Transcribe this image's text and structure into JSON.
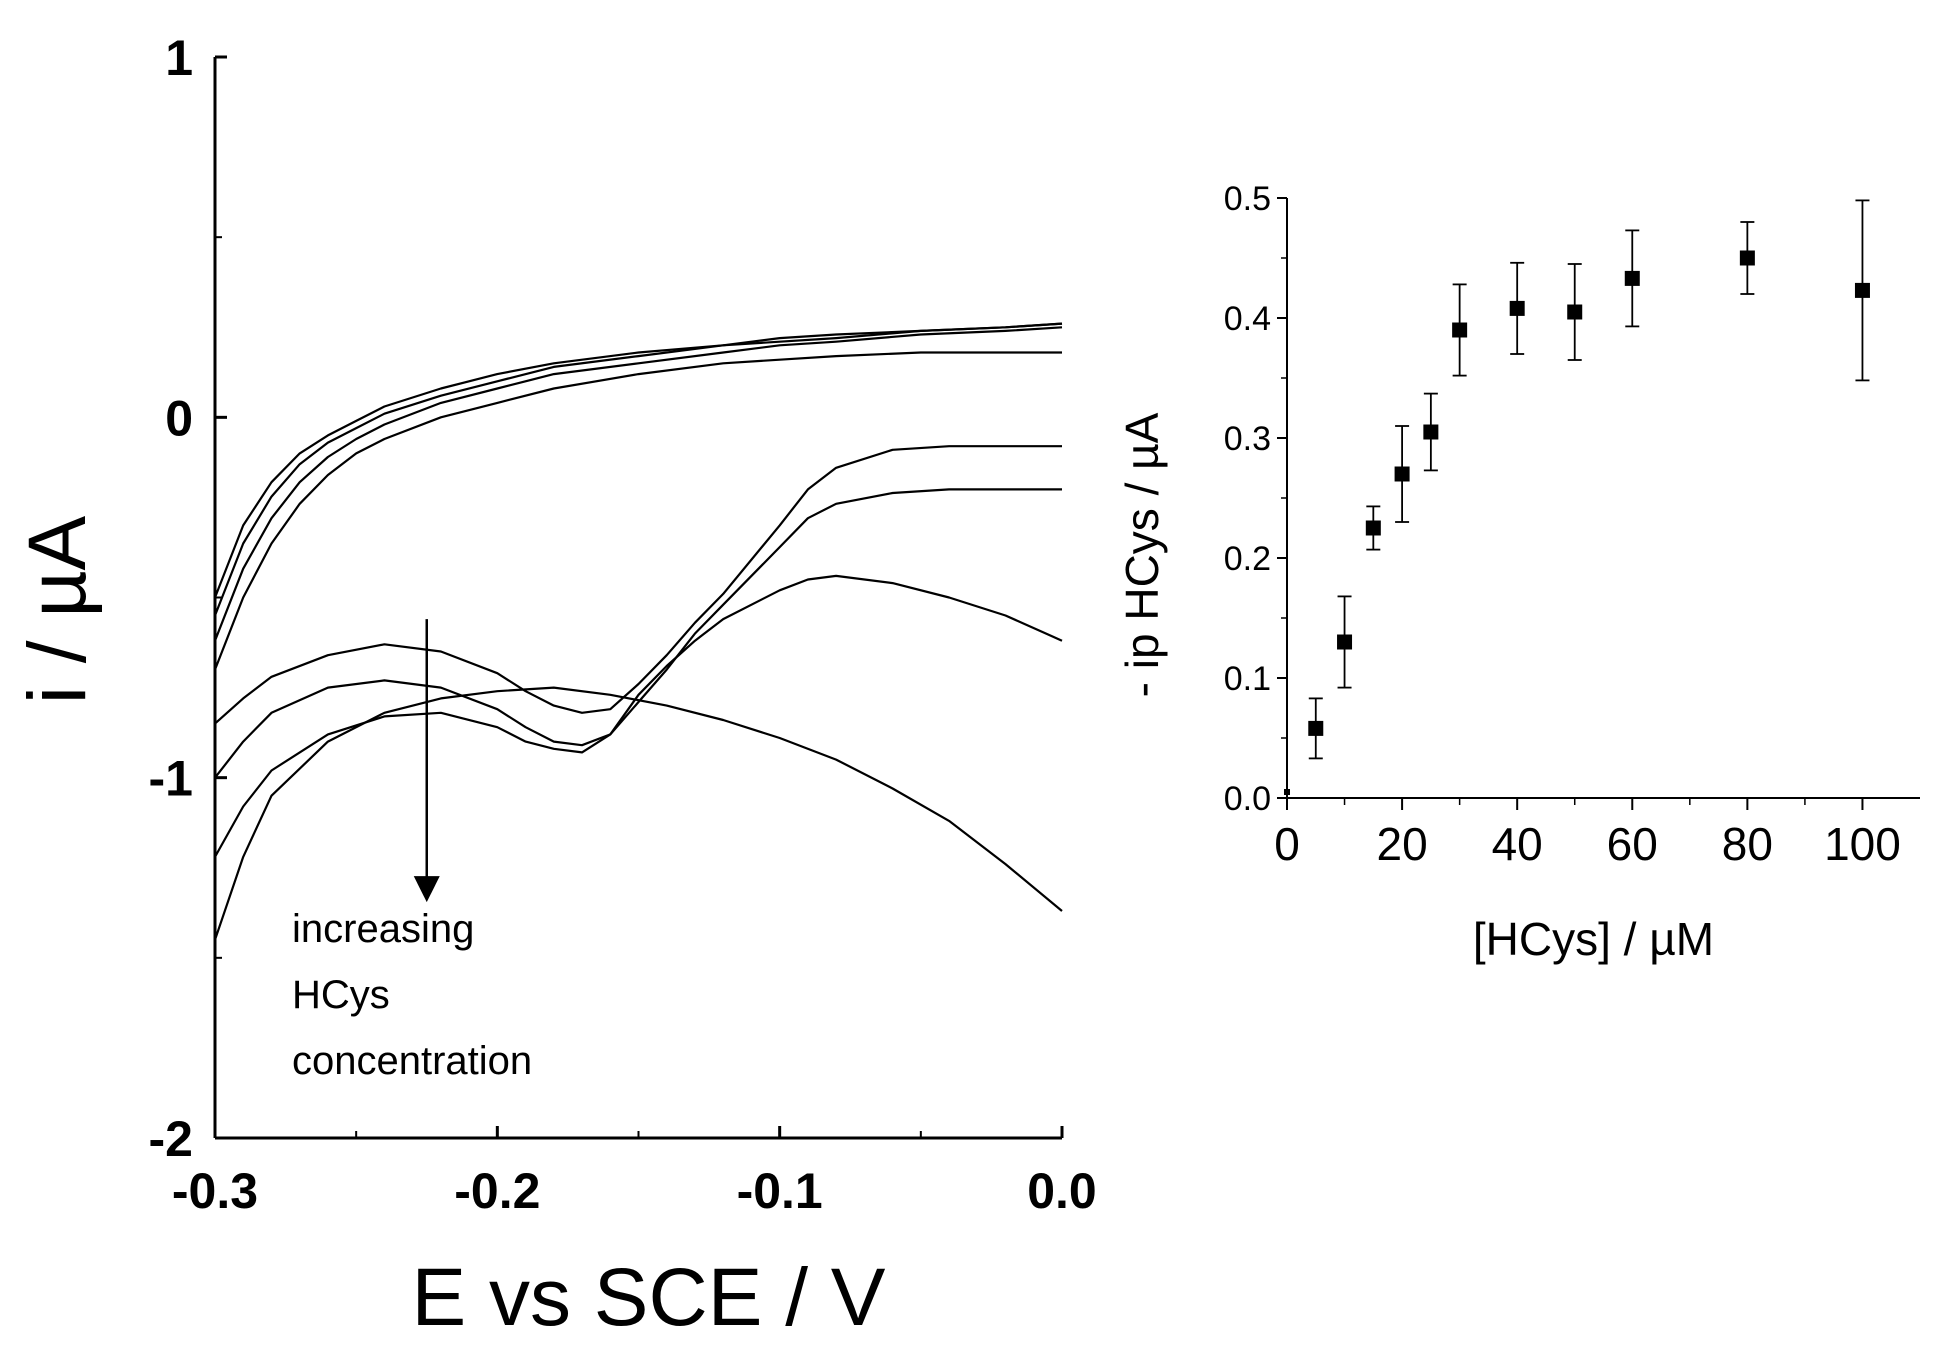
{
  "chart_data": [
    {
      "type": "line",
      "title": "",
      "xlabel": "E vs SCE / V",
      "ylabel": "i / µA",
      "xlim": [
        -0.3,
        0.0
      ],
      "ylim": [
        -2,
        1
      ],
      "xticks": [
        -0.3,
        -0.2,
        -0.1,
        0.0
      ],
      "xtick_labels": [
        "-0.3",
        "-0.2",
        "-0.1",
        "0.0"
      ],
      "yticks": [
        -2,
        -1,
        0,
        1
      ],
      "ytick_labels": [
        "-2",
        "-1",
        "0",
        "1"
      ],
      "grid": false,
      "line_color": "#000000",
      "annotation": {
        "lines": [
          "increasing",
          "HCys",
          "concentration"
        ],
        "arrow_x": -0.225,
        "arrow_from_y": -0.56,
        "arrow_to_y": -1.34
      },
      "series": [
        {
          "x": [
            -0.3,
            -0.29,
            -0.28,
            -0.27,
            -0.26,
            -0.25,
            -0.24,
            -0.22,
            -0.2,
            -0.18,
            -0.15,
            -0.12,
            -0.1,
            -0.08,
            -0.05,
            -0.02,
            0.0
          ],
          "values": [
            -0.5,
            -0.3,
            -0.18,
            -0.1,
            -0.05,
            -0.01,
            0.03,
            0.08,
            0.12,
            0.15,
            0.18,
            0.2,
            0.22,
            0.23,
            0.24,
            0.25,
            0.26
          ]
        },
        {
          "x": [
            -0.3,
            -0.29,
            -0.28,
            -0.27,
            -0.26,
            -0.25,
            -0.24,
            -0.22,
            -0.2,
            -0.18,
            -0.15,
            -0.12,
            -0.1,
            -0.08,
            -0.05,
            -0.02,
            0.0
          ],
          "values": [
            -0.55,
            -0.35,
            -0.22,
            -0.13,
            -0.07,
            -0.03,
            0.01,
            0.06,
            0.1,
            0.14,
            0.17,
            0.2,
            0.21,
            0.22,
            0.24,
            0.25,
            0.26
          ]
        },
        {
          "x": [
            -0.3,
            -0.29,
            -0.28,
            -0.27,
            -0.26,
            -0.25,
            -0.24,
            -0.22,
            -0.2,
            -0.18,
            -0.15,
            -0.12,
            -0.1,
            -0.08,
            -0.05,
            -0.02,
            0.0
          ],
          "values": [
            -0.62,
            -0.42,
            -0.28,
            -0.18,
            -0.11,
            -0.06,
            -0.02,
            0.04,
            0.08,
            0.12,
            0.15,
            0.18,
            0.2,
            0.21,
            0.23,
            0.24,
            0.25
          ]
        },
        {
          "x": [
            -0.3,
            -0.29,
            -0.28,
            -0.27,
            -0.26,
            -0.25,
            -0.24,
            -0.22,
            -0.2,
            -0.18,
            -0.15,
            -0.12,
            -0.1,
            -0.08,
            -0.05,
            -0.02,
            0.0
          ],
          "values": [
            -0.7,
            -0.5,
            -0.35,
            -0.24,
            -0.16,
            -0.1,
            -0.06,
            0.0,
            0.04,
            0.08,
            0.12,
            0.15,
            0.16,
            0.17,
            0.18,
            0.18,
            0.18
          ]
        },
        {
          "x": [
            -0.3,
            -0.29,
            -0.28,
            -0.26,
            -0.24,
            -0.22,
            -0.2,
            -0.19,
            -0.18,
            -0.17,
            -0.16,
            -0.15,
            -0.14,
            -0.13,
            -0.12,
            -0.1,
            -0.09,
            -0.08,
            -0.06,
            -0.04,
            -0.02,
            0.0
          ],
          "values": [
            -0.85,
            -0.78,
            -0.72,
            -0.66,
            -0.63,
            -0.65,
            -0.71,
            -0.76,
            -0.8,
            -0.82,
            -0.81,
            -0.74,
            -0.66,
            -0.57,
            -0.49,
            -0.3,
            -0.2,
            -0.14,
            -0.09,
            -0.08,
            -0.08,
            -0.08
          ]
        },
        {
          "x": [
            -0.3,
            -0.29,
            -0.28,
            -0.26,
            -0.24,
            -0.22,
            -0.2,
            -0.19,
            -0.18,
            -0.17,
            -0.16,
            -0.15,
            -0.14,
            -0.13,
            -0.12,
            -0.1,
            -0.09,
            -0.08,
            -0.06,
            -0.04,
            -0.02,
            0.0
          ],
          "values": [
            -1.0,
            -0.9,
            -0.82,
            -0.75,
            -0.73,
            -0.75,
            -0.81,
            -0.86,
            -0.9,
            -0.91,
            -0.88,
            -0.79,
            -0.7,
            -0.6,
            -0.52,
            -0.36,
            -0.28,
            -0.24,
            -0.21,
            -0.2,
            -0.2,
            -0.2
          ]
        },
        {
          "x": [
            -0.3,
            -0.29,
            -0.28,
            -0.26,
            -0.24,
            -0.22,
            -0.2,
            -0.19,
            -0.18,
            -0.17,
            -0.16,
            -0.15,
            -0.14,
            -0.13,
            -0.12,
            -0.1,
            -0.09,
            -0.08,
            -0.06,
            -0.04,
            -0.02,
            0.0
          ],
          "values": [
            -1.22,
            -1.08,
            -0.98,
            -0.88,
            -0.83,
            -0.82,
            -0.86,
            -0.9,
            -0.92,
            -0.93,
            -0.88,
            -0.77,
            -0.69,
            -0.62,
            -0.56,
            -0.48,
            -0.45,
            -0.44,
            -0.46,
            -0.5,
            -0.55,
            -0.62
          ]
        },
        {
          "x": [
            -0.3,
            -0.29,
            -0.28,
            -0.26,
            -0.24,
            -0.22,
            -0.2,
            -0.18,
            -0.16,
            -0.14,
            -0.12,
            -0.1,
            -0.08,
            -0.06,
            -0.04,
            -0.02,
            0.0
          ],
          "values": [
            -1.45,
            -1.22,
            -1.05,
            -0.9,
            -0.82,
            -0.78,
            -0.76,
            -0.75,
            -0.77,
            -0.8,
            -0.84,
            -0.89,
            -0.95,
            -1.03,
            -1.12,
            -1.24,
            -1.37
          ]
        }
      ]
    },
    {
      "type": "scatter",
      "title": "",
      "xlabel": "[HCys] / µM",
      "ylabel": "- ip HCys / µA",
      "xlim": [
        0,
        110
      ],
      "ylim": [
        0,
        0.5
      ],
      "xticks": [
        0,
        20,
        40,
        60,
        80,
        100
      ],
      "xtick_labels": [
        "0",
        "20",
        "40",
        "60",
        "80",
        "100"
      ],
      "yticks": [
        0.0,
        0.1,
        0.2,
        0.3,
        0.4,
        0.5
      ],
      "ytick_labels": [
        "0.0",
        "0.1",
        "0.2",
        "0.3",
        "0.4",
        "0.5"
      ],
      "grid": false,
      "marker": "square",
      "marker_color": "#000000",
      "series": [
        {
          "x": [
            0,
            5,
            10,
            15,
            20,
            25,
            30,
            40,
            50,
            60,
            80,
            100
          ],
          "values": [
            0.005,
            0.058,
            0.13,
            0.225,
            0.27,
            0.305,
            0.39,
            0.408,
            0.405,
            0.433,
            0.45,
            0.423
          ],
          "errors": [
            0.0,
            0.025,
            0.038,
            0.018,
            0.04,
            0.032,
            0.038,
            0.038,
            0.04,
            0.04,
            0.03,
            0.075
          ]
        }
      ]
    }
  ]
}
